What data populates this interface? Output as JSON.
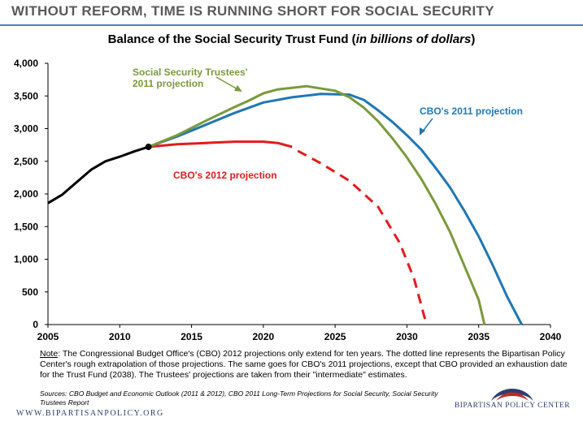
{
  "header": {
    "headline": "WITHOUT REFORM, TIME IS RUNNING SHORT FOR SOCIAL SECURITY"
  },
  "chart_data": {
    "type": "line",
    "title": "Balance of the Social Security Trust Fund",
    "title_unit": "in billions of dollars",
    "xlim": [
      2005,
      2040
    ],
    "ylim": [
      0,
      4000
    ],
    "x_ticks": [
      "2005",
      "2010",
      "2015",
      "2020",
      "2025",
      "2030",
      "2035",
      "2040"
    ],
    "y_ticks": [
      "0",
      "500",
      "1,000",
      "1,500",
      "2,000",
      "2,500",
      "3,000",
      "3,500",
      "4,000"
    ],
    "grid": false,
    "series": [
      {
        "name": "",
        "color": "#000000",
        "style": "solid",
        "points": [
          [
            2005,
            1860
          ],
          [
            2006,
            1990
          ],
          [
            2007,
            2180
          ],
          [
            2008,
            2370
          ],
          [
            2009,
            2500
          ],
          [
            2010,
            2570
          ],
          [
            2011,
            2650
          ],
          [
            2012,
            2720
          ]
        ]
      },
      {
        "name": "CBO's 2012 projection",
        "color": "#e31c1c",
        "style": "solid",
        "points": [
          [
            2012,
            2720
          ],
          [
            2014,
            2760
          ],
          [
            2016,
            2780
          ],
          [
            2018,
            2800
          ],
          [
            2020,
            2800
          ],
          [
            2021,
            2780
          ],
          [
            2022,
            2720
          ]
        ]
      },
      {
        "name": "",
        "color": "#e31c1c",
        "style": "dashed",
        "points": [
          [
            2022.4,
            2660
          ],
          [
            2024,
            2470
          ],
          [
            2026,
            2200
          ],
          [
            2028,
            1800
          ],
          [
            2029.5,
            1250
          ],
          [
            2030.5,
            700
          ],
          [
            2031.3,
            50
          ]
        ]
      },
      {
        "name": "CBO's 2011 projection",
        "color": "#1f77b4",
        "style": "solid",
        "points": [
          [
            2012,
            2720
          ],
          [
            2014,
            2880
          ],
          [
            2016,
            3060
          ],
          [
            2018,
            3240
          ],
          [
            2020,
            3400
          ],
          [
            2022,
            3480
          ],
          [
            2024,
            3530
          ],
          [
            2026,
            3520
          ],
          [
            2027,
            3440
          ],
          [
            2028,
            3280
          ],
          [
            2029,
            3100
          ],
          [
            2030,
            2900
          ],
          [
            2031,
            2680
          ],
          [
            2032,
            2400
          ],
          [
            2033,
            2100
          ],
          [
            2034,
            1740
          ],
          [
            2035,
            1350
          ],
          [
            2036,
            900
          ],
          [
            2037,
            420
          ],
          [
            2038,
            0
          ]
        ]
      },
      {
        "name": "Social Security Trustees' 2011 projection",
        "color": "#7a9a3a",
        "style": "solid",
        "points": [
          [
            2012,
            2720
          ],
          [
            2014,
            2900
          ],
          [
            2016,
            3120
          ],
          [
            2018,
            3330
          ],
          [
            2019,
            3430
          ],
          [
            2020,
            3540
          ],
          [
            2021,
            3600
          ],
          [
            2023,
            3650
          ],
          [
            2025,
            3580
          ],
          [
            2026,
            3480
          ],
          [
            2027,
            3320
          ],
          [
            2028,
            3110
          ],
          [
            2029,
            2850
          ],
          [
            2030,
            2560
          ],
          [
            2031,
            2230
          ],
          [
            2032,
            1850
          ],
          [
            2033,
            1420
          ],
          [
            2034,
            900
          ],
          [
            2035,
            380
          ],
          [
            2035.4,
            0
          ]
        ]
      }
    ],
    "annotations": {
      "trustees_line1": "Social Security Trustees'",
      "trustees_line2": "2011 projection",
      "cbo2011": "CBO's 2011 projection",
      "cbo2012": "CBO's 2012 projection"
    },
    "colors": {
      "black": "#000000",
      "red": "#e31c1c",
      "blue": "#1f77b4",
      "green": "#7a9a3a"
    }
  },
  "footer": {
    "note_label": "Note",
    "note_text": ": The Congressional Budget Office's (CBO) 2012 projections only extend for ten years. The dotted line represents the Bipartisan Policy Center's rough extrapolation of  those projections.  The same goes for CBO's 2011 projections, except that CBO provided an exhaustion date for the Trust Fund (2038). The Trustees' projections are taken from their \"intermediate\" estimates.",
    "sources": "Sources: CBO Budget and Economic Outlook (2011 & 2012), CBO  2011 Long-Term Projections for Social Security, Social Security Trustees Report",
    "website": "WWW.BIPARTISANPOLICY.ORG",
    "org": "BIPARTISAN POLICY CENTER"
  }
}
